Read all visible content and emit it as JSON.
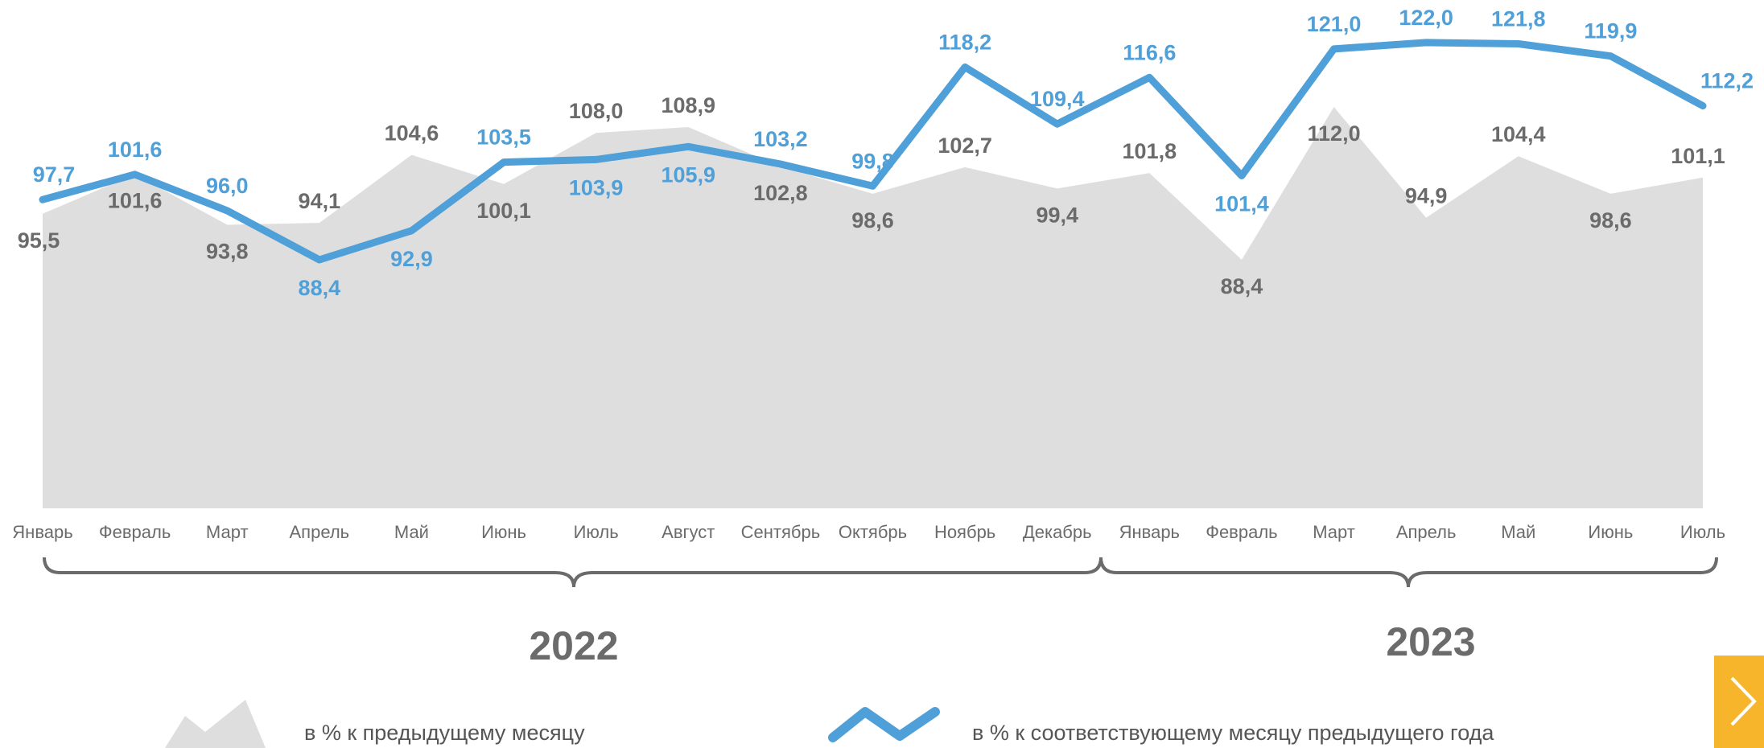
{
  "chart_data": {
    "type": "area",
    "categories": [
      "Январь",
      "Февраль",
      "Март",
      "Апрель",
      "Май",
      "Июнь",
      "Июль",
      "Август",
      "Сентябрь",
      "Октябрь",
      "Ноябрь",
      "Декабрь",
      "Январь",
      "Февраль",
      "Март",
      "Апрель",
      "Май",
      "Июнь",
      "Июль"
    ],
    "category_groups": [
      {
        "label": "2022",
        "from": 0,
        "to": 11
      },
      {
        "label": "2023",
        "from": 12,
        "to": 18
      }
    ],
    "series": [
      {
        "name": "в % к предыдущему месяцу",
        "kind": "area",
        "color": "#dedede",
        "values": [
          95.5,
          101.6,
          93.8,
          94.1,
          104.6,
          100.1,
          108.0,
          108.9,
          102.8,
          98.6,
          102.7,
          99.4,
          101.8,
          88.4,
          112.0,
          94.9,
          104.4,
          98.6,
          101.1
        ],
        "labels": [
          "95,5",
          "101,6",
          "93,8",
          "94,1",
          "104,6",
          "100,1",
          "108,0",
          "108,9",
          "102,8",
          "98,6",
          "102,7",
          "99,4",
          "101,8",
          "88,4",
          "112,0",
          "94,9",
          "104,4",
          "98,6",
          "101,1"
        ]
      },
      {
        "name": "в % к соответствующему месяцу предыдущего года",
        "kind": "line",
        "color": "#4f9fd8",
        "values": [
          97.7,
          101.6,
          96.0,
          88.4,
          92.9,
          103.5,
          103.9,
          105.9,
          103.2,
          99.8,
          118.2,
          109.4,
          116.6,
          101.4,
          121.0,
          122.0,
          121.8,
          119.9,
          112.2
        ],
        "labels": [
          "97,7",
          "101,6",
          "96,0",
          "88,4",
          "92,9",
          "103,5",
          "103,9",
          "105,9",
          "103,2",
          "99,8",
          "118,2",
          "109,4",
          "116,6",
          "101,4",
          "121,0",
          "122,0",
          "121,8",
          "119,9",
          "112,2"
        ]
      }
    ],
    "grid": false,
    "legend": "bottom"
  },
  "colors": {
    "area": "#dedede",
    "line": "#4f9fd8",
    "text": "#6b6b6b",
    "button": "#f7b52c"
  },
  "nav": {
    "next_icon": "chevron-right-icon"
  }
}
